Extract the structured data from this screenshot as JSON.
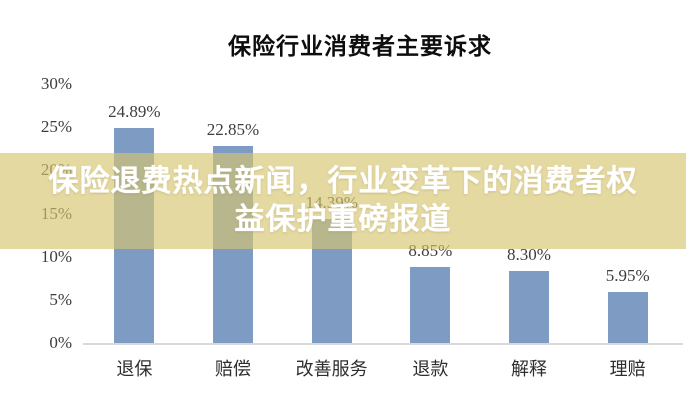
{
  "banner": {
    "line1": "保险退费热点新闻，行业变革下的消费者权",
    "line2": "益保护重磅报道",
    "bg_color": "rgba(214, 196, 110, 0.65)",
    "text_color": "#ffffff"
  },
  "chart_data": {
    "type": "bar",
    "title": "保险行业消费者主要诉求",
    "categories": [
      "退保",
      "赔偿",
      "改善服务",
      "退款",
      "解释",
      "理赔"
    ],
    "values": [
      24.89,
      22.85,
      14.39,
      8.85,
      8.3,
      5.95
    ],
    "value_labels": [
      "24.89%",
      "22.85%",
      "14.39%",
      "8.85%",
      "8.30%",
      "5.95%"
    ],
    "xlabel": "",
    "ylabel": "",
    "ylim": [
      0,
      30
    ],
    "ytick_values": [
      30,
      25,
      20,
      15,
      10,
      5,
      0
    ],
    "ytick_labels": [
      "30%",
      "25%",
      "20%",
      "15%",
      "10%",
      "5%",
      "0%"
    ],
    "grid": false,
    "legend": null,
    "bar_color": "#7E9BC4",
    "axis_line_color": "#D9D9D9",
    "background_color": "#FFFFFF"
  }
}
